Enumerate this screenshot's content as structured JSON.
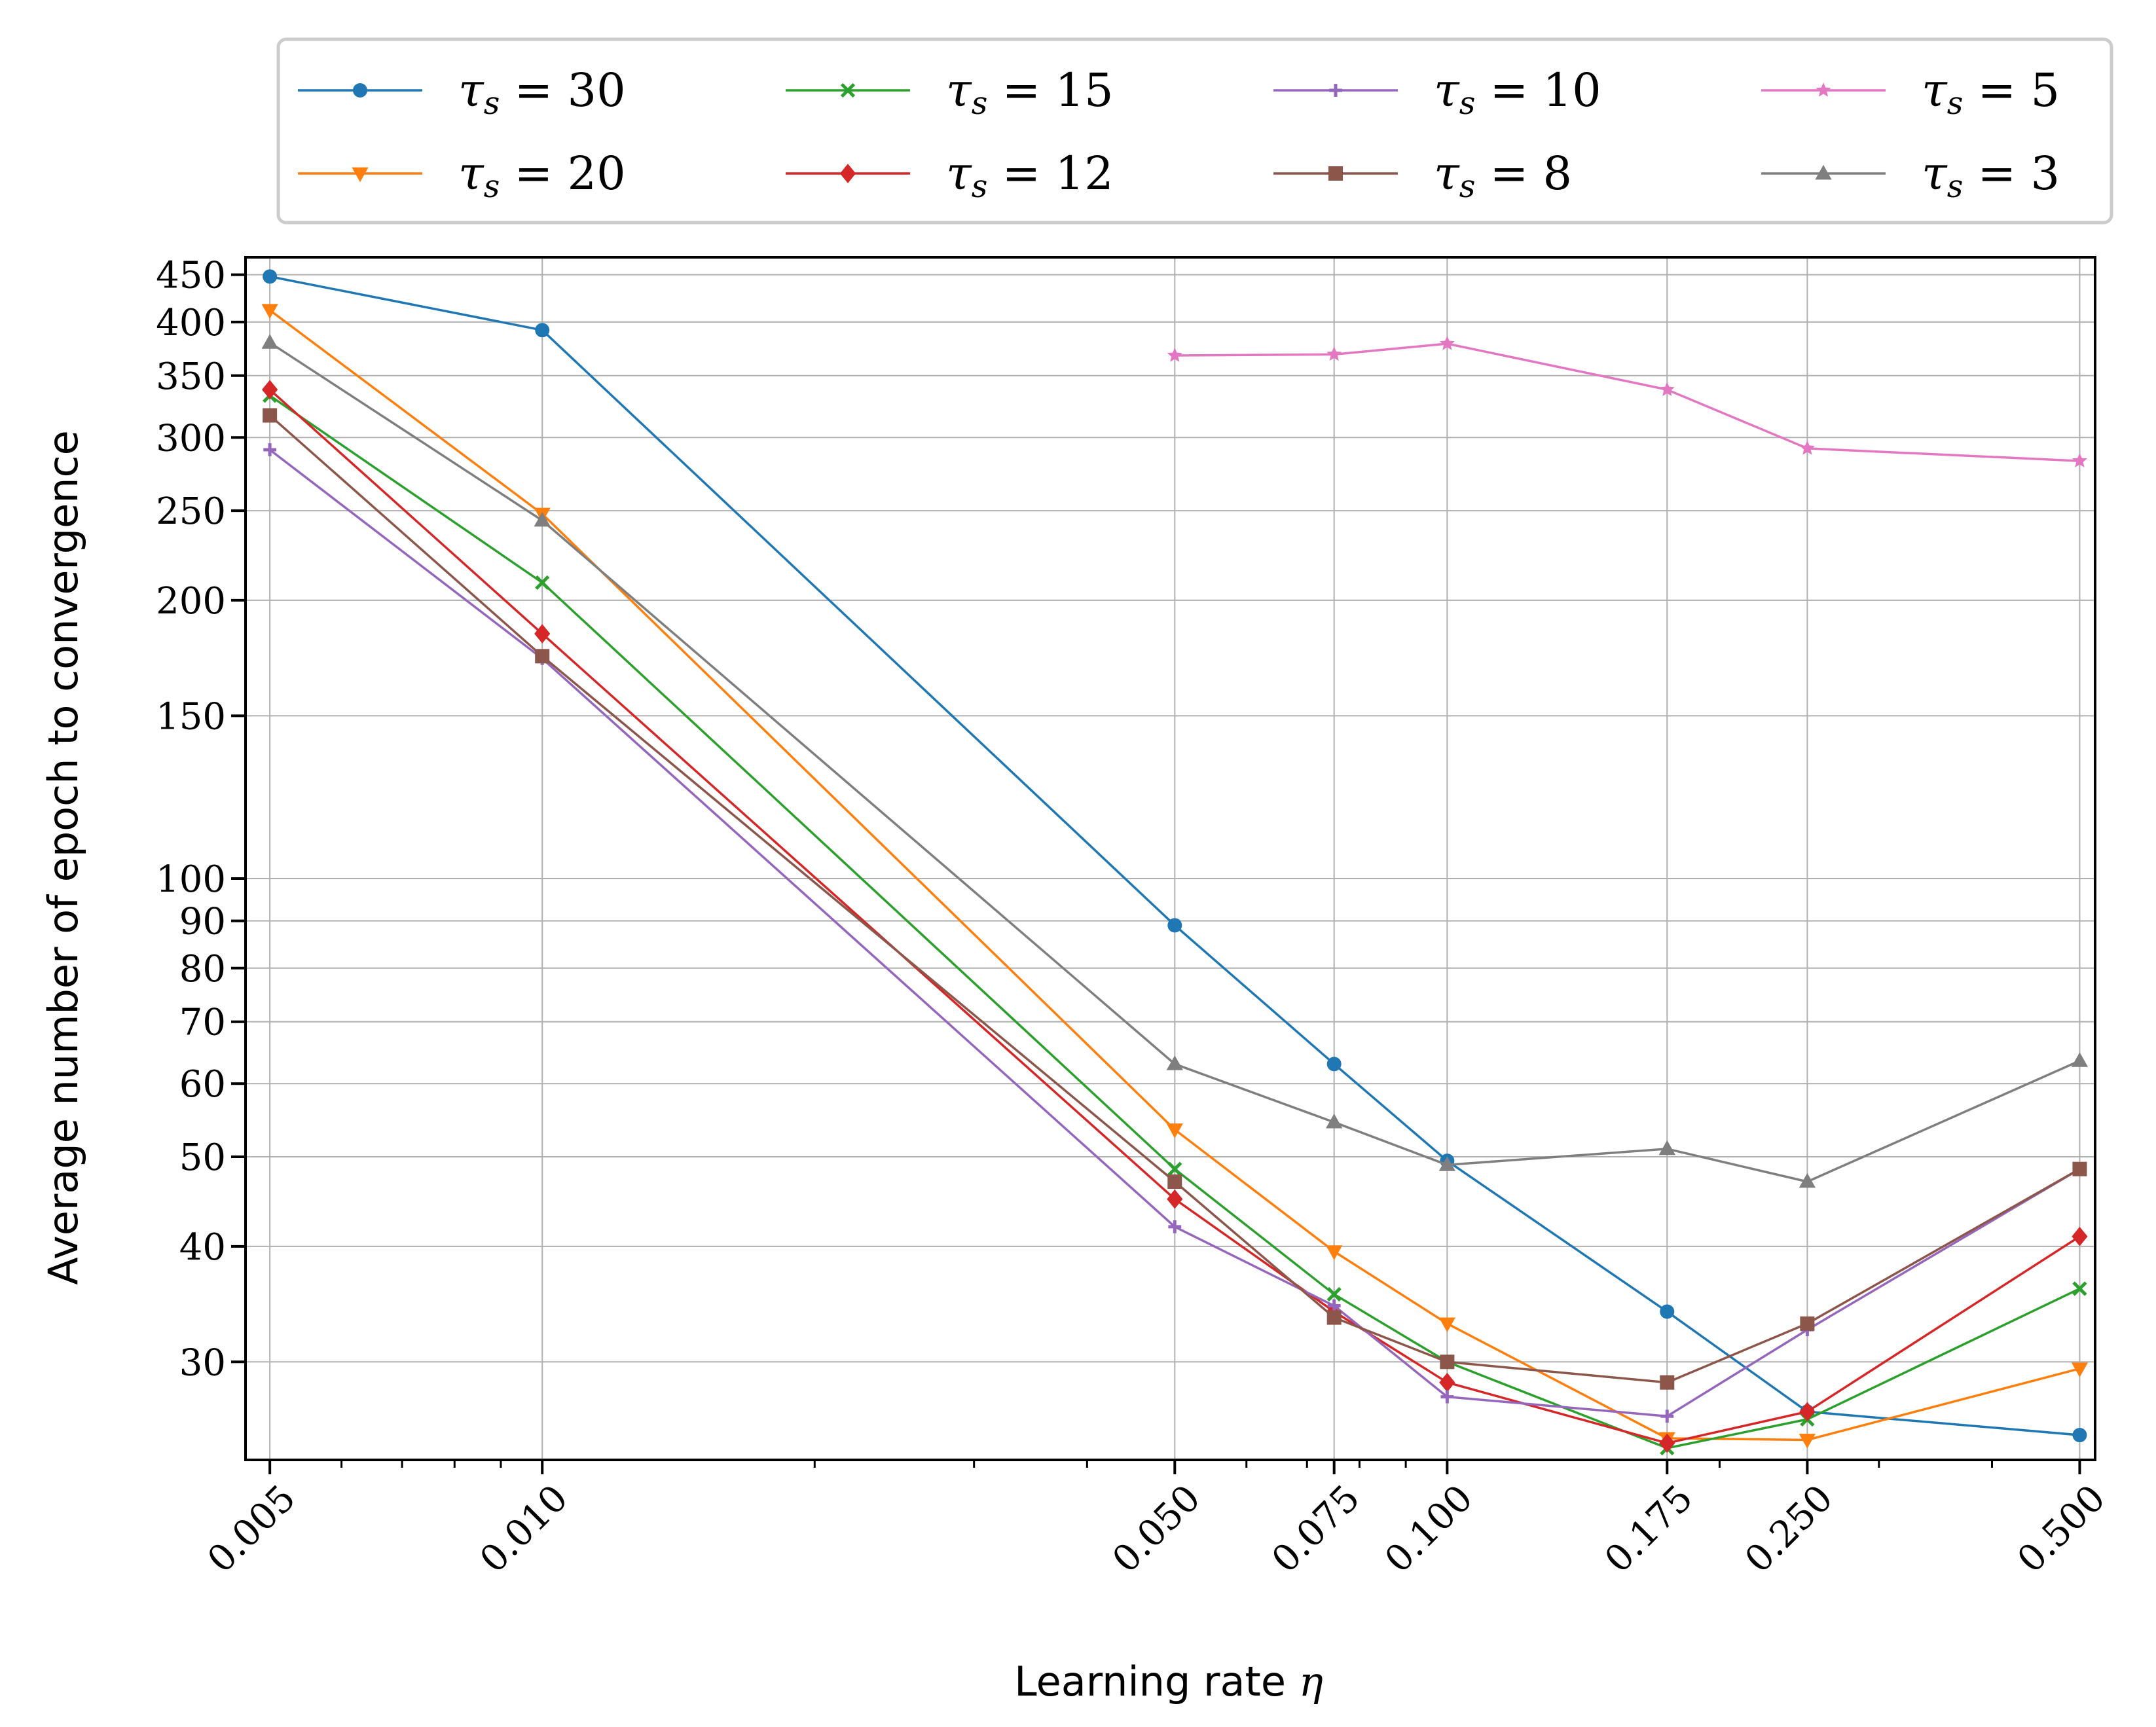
{
  "chart_data": {
    "type": "line",
    "xlabel": "Learning rate",
    "xlabel_symbol": "η",
    "ylabel": "Average number of epoch to convergence",
    "xscale": "log",
    "yscale": "log",
    "xlim": [
      0.0047,
      0.52
    ],
    "ylim": [
      23.5,
      470
    ],
    "grid": true,
    "legend_position": "top, outside plot, 4 columns",
    "x": [
      0.005,
      0.01,
      0.05,
      0.075,
      0.1,
      0.175,
      0.25,
      0.5
    ],
    "x_tick_labels": [
      "0.005",
      "0.010",
      "0.050",
      "0.075",
      "0.100",
      "0.175",
      "0.250",
      "0.500"
    ],
    "y_ticks": [
      30,
      40,
      50,
      60,
      70,
      80,
      90,
      100,
      150,
      200,
      250,
      300,
      350,
      400,
      450
    ],
    "y_tick_labels": [
      "30",
      "40",
      "50",
      "60",
      "70",
      "80",
      "90",
      "100",
      "150",
      "200",
      "250",
      "300",
      "350",
      "400",
      "450"
    ],
    "series": [
      {
        "name": "τs = 30",
        "symbol": "τ",
        "subscript": "s",
        "value_label": "30",
        "color": "#1f77b4",
        "marker": "circle",
        "values": [
          448,
          392,
          89,
          63,
          49.5,
          34,
          26.5,
          25
        ]
      },
      {
        "name": "τs = 20",
        "symbol": "τ",
        "subscript": "s",
        "value_label": "20",
        "color": "#ff7f0e",
        "marker": "triangle-down",
        "values": [
          412,
          248,
          53.5,
          39.5,
          33,
          24.8,
          24.7,
          29.5
        ]
      },
      {
        "name": "τs = 15",
        "symbol": "τ",
        "subscript": "s",
        "value_label": "15",
        "color": "#2ca02c",
        "marker": "x",
        "values": [
          333,
          209,
          48.5,
          35.5,
          30,
          24.2,
          26,
          36
        ]
      },
      {
        "name": "τs = 12",
        "symbol": "τ",
        "subscript": "s",
        "value_label": "12",
        "color": "#d62728",
        "marker": "diamond",
        "values": [
          338,
          184,
          45,
          34,
          28.5,
          24.5,
          26.5,
          41
        ]
      },
      {
        "name": "τs = 10",
        "symbol": "τ",
        "subscript": "s",
        "value_label": "10",
        "color": "#9467bd",
        "marker": "plus",
        "values": [
          291,
          173,
          42,
          34.5,
          27.5,
          26.2,
          32.5,
          48.5
        ]
      },
      {
        "name": "τs = 8",
        "symbol": "τ",
        "subscript": "s",
        "value_label": "8",
        "color": "#8c564b",
        "marker": "square",
        "values": [
          317,
          174,
          47,
          33.5,
          30,
          28.5,
          33,
          48.5
        ]
      },
      {
        "name": "τs = 5",
        "symbol": "τ",
        "subscript": "s",
        "value_label": "5",
        "color": "#e377c2",
        "marker": "star",
        "values": [
          null,
          null,
          368,
          369,
          379,
          338,
          292,
          283
        ]
      },
      {
        "name": "τs = 3",
        "symbol": "τ",
        "subscript": "s",
        "value_label": "3",
        "color": "#7f7f7f",
        "marker": "triangle-up",
        "values": [
          380,
          244,
          63,
          54.5,
          49,
          51,
          47,
          63.5
        ]
      }
    ]
  }
}
